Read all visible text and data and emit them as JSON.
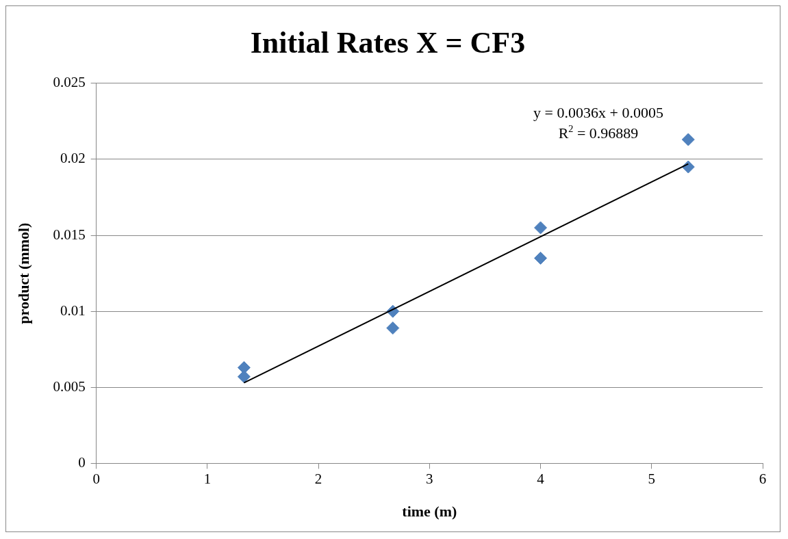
{
  "chart_data": {
    "type": "scatter",
    "title": "Initial Rates X = CF3",
    "xlabel": "time (m)",
    "ylabel": "product (mmol)",
    "series": [
      {
        "color": "#4f81bd",
        "x": [
          1.33,
          1.33,
          2.67,
          2.67,
          4.0,
          4.0,
          5.33,
          5.33
        ],
        "values": [
          0.0063,
          0.0057,
          0.01,
          0.0089,
          0.0155,
          0.0135,
          0.0213,
          0.0195
        ],
        "marker": "diamond"
      },
      {
        "type": "line",
        "color": "#000000",
        "x": [
          1.33,
          5.33
        ],
        "values": [
          0.0053,
          0.0197
        ],
        "marker": "none",
        "line_style": "solid"
      }
    ],
    "annotations": [
      "y = 0.0036x + 0.0005",
      "R$^{2}$ = 0.96889"
    ],
    "xlim": [
      0,
      6
    ],
    "xticks": [
      0,
      1,
      2,
      3,
      4,
      5,
      6
    ],
    "ylim": [
      0,
      0.025
    ],
    "yticks": [
      0,
      0.005,
      0.01,
      0.015,
      0.02,
      0.025
    ],
    "grid": "y",
    "legend": false
  }
}
